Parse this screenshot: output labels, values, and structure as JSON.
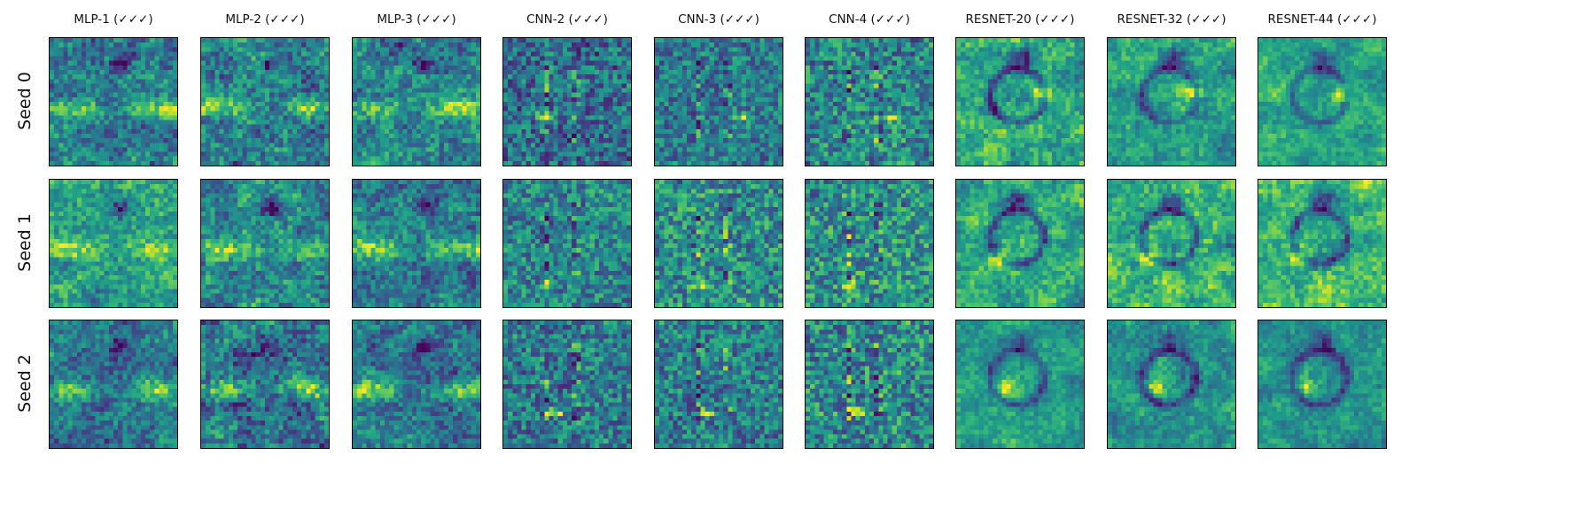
{
  "chart_data": {
    "type": "heatmap",
    "colormap": "viridis",
    "columns": [
      "MLP-1 (✓✓✓)",
      "MLP-2 (✓✓✓)",
      "MLP-3 (✓✓✓)",
      "CNN-2 (✓✓✓)",
      "CNN-3 (✓✓✓)",
      "CNN-4 (✓✓✓)",
      "RESNET-20 (✓✓✓)",
      "RESNET-32 (✓✓✓)",
      "RESNET-44 (✓✓✓)"
    ],
    "rows": [
      "Seed 0",
      "Seed 1",
      "Seed 2"
    ],
    "axes_ticks": false,
    "image_resolution": [
      28,
      28
    ],
    "panel_styles": [
      "mlp",
      "mlp",
      "mlp",
      "cnn",
      "cnn",
      "cnn",
      "resnet",
      "resnet",
      "resnet"
    ]
  }
}
